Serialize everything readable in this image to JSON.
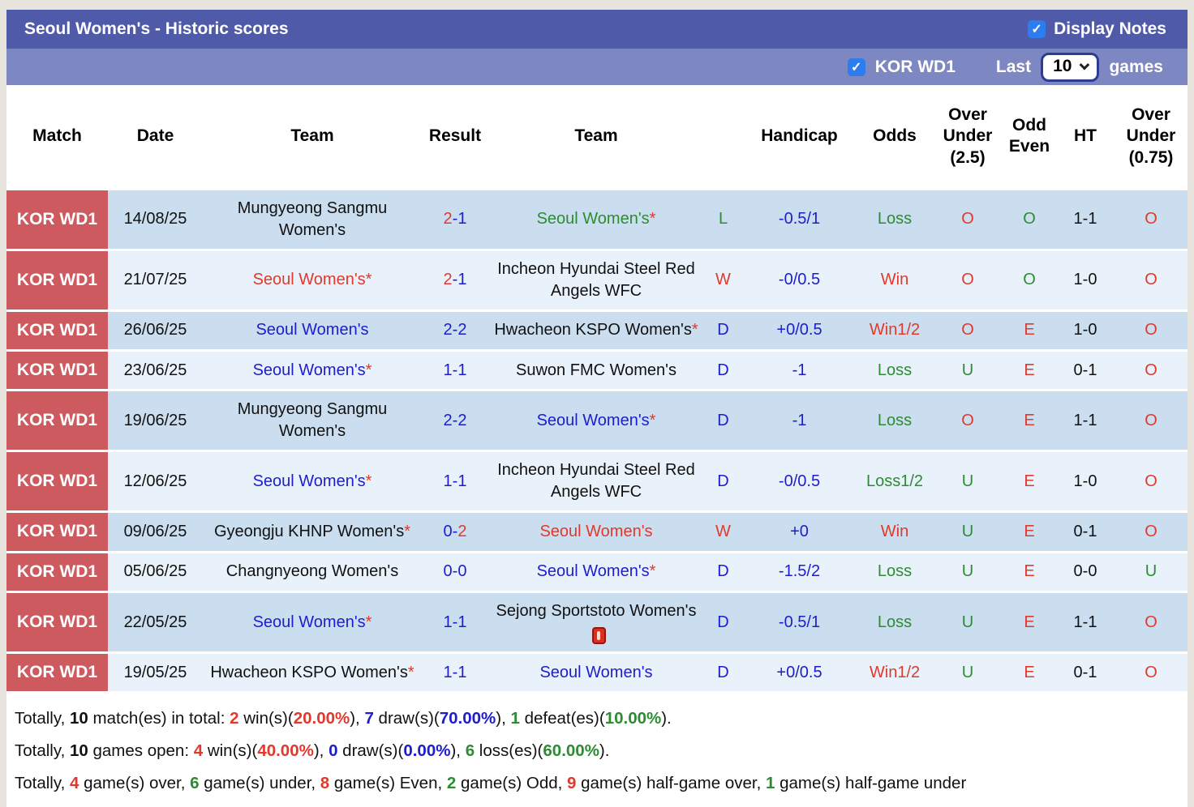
{
  "header": {
    "title": "Seoul Women's - Historic scores",
    "display_notes_label": "Display Notes",
    "league_filter_label": "KOR WD1",
    "last_label": "Last",
    "games_count": "10",
    "games_label": "games"
  },
  "colors": {
    "accent_bar": "#4f5ba8",
    "sub_bar": "#7d87c2",
    "league_badge": "#cd5a5e",
    "row_dark": "#cadeef",
    "row_light": "#e9f2fb",
    "win_red": "#e0392d",
    "draw_blue": "#1d1dcc",
    "loss_green": "#2e8b33"
  },
  "table": {
    "headers": [
      "Match",
      "Date",
      "Team",
      "Result",
      "Team",
      "",
      "Handicap",
      "Odds",
      "Over Under (2.5)",
      "Odd Even",
      "HT",
      "Over Under (0.75)"
    ],
    "rows": [
      {
        "league": "KOR WD1",
        "date": "14/08/25",
        "home": {
          "name": "Mungyeong Sangmu Women's",
          "color": "black",
          "asterisk": false
        },
        "result": {
          "home": "2",
          "home_color": "red",
          "away": "1",
          "away_color": "blue"
        },
        "away": {
          "name": "Seoul Women's",
          "color": "green",
          "asterisk": true
        },
        "wdl": {
          "text": "L",
          "color": "green"
        },
        "handicap": "-0.5/1",
        "odds": {
          "text": "Loss",
          "color": "green"
        },
        "over_under_2_5": {
          "text": "O",
          "color": "red"
        },
        "odd_even": {
          "text": "O",
          "color": "green"
        },
        "ht": "1-1",
        "over_under_0_75": {
          "text": "O",
          "color": "red"
        }
      },
      {
        "league": "KOR WD1",
        "date": "21/07/25",
        "home": {
          "name": "Seoul Women's",
          "color": "red",
          "asterisk": true
        },
        "result": {
          "home": "2",
          "home_color": "red",
          "away": "1",
          "away_color": "blue"
        },
        "away": {
          "name": "Incheon Hyundai Steel Red Angels WFC",
          "color": "black",
          "asterisk": false
        },
        "wdl": {
          "text": "W",
          "color": "red"
        },
        "handicap": "-0/0.5",
        "odds": {
          "text": "Win",
          "color": "red"
        },
        "over_under_2_5": {
          "text": "O",
          "color": "red"
        },
        "odd_even": {
          "text": "O",
          "color": "green"
        },
        "ht": "1-0",
        "over_under_0_75": {
          "text": "O",
          "color": "red"
        }
      },
      {
        "league": "KOR WD1",
        "date": "26/06/25",
        "home": {
          "name": "Seoul Women's",
          "color": "blue",
          "asterisk": false
        },
        "result": {
          "home": "2",
          "home_color": "blue",
          "away": "2",
          "away_color": "blue"
        },
        "away": {
          "name": "Hwacheon KSPO Women's",
          "color": "black",
          "asterisk": true
        },
        "wdl": {
          "text": "D",
          "color": "blue"
        },
        "handicap": "+0/0.5",
        "odds": {
          "text": "Win1/2",
          "color": "red"
        },
        "over_under_2_5": {
          "text": "O",
          "color": "red"
        },
        "odd_even": {
          "text": "E",
          "color": "red"
        },
        "ht": "1-0",
        "over_under_0_75": {
          "text": "O",
          "color": "red"
        }
      },
      {
        "league": "KOR WD1",
        "date": "23/06/25",
        "home": {
          "name": "Seoul Women's",
          "color": "blue",
          "asterisk": true
        },
        "result": {
          "home": "1",
          "home_color": "blue",
          "away": "1",
          "away_color": "blue"
        },
        "away": {
          "name": "Suwon FMC Women's",
          "color": "black",
          "asterisk": false
        },
        "wdl": {
          "text": "D",
          "color": "blue"
        },
        "handicap": "-1",
        "odds": {
          "text": "Loss",
          "color": "green"
        },
        "over_under_2_5": {
          "text": "U",
          "color": "green"
        },
        "odd_even": {
          "text": "E",
          "color": "red"
        },
        "ht": "0-1",
        "over_under_0_75": {
          "text": "O",
          "color": "red"
        }
      },
      {
        "league": "KOR WD1",
        "date": "19/06/25",
        "home": {
          "name": "Mungyeong Sangmu Women's",
          "color": "black",
          "asterisk": false
        },
        "result": {
          "home": "2",
          "home_color": "blue",
          "away": "2",
          "away_color": "blue"
        },
        "away": {
          "name": "Seoul Women's",
          "color": "blue",
          "asterisk": true
        },
        "wdl": {
          "text": "D",
          "color": "blue"
        },
        "handicap": "-1",
        "odds": {
          "text": "Loss",
          "color": "green"
        },
        "over_under_2_5": {
          "text": "O",
          "color": "red"
        },
        "odd_even": {
          "text": "E",
          "color": "red"
        },
        "ht": "1-1",
        "over_under_0_75": {
          "text": "O",
          "color": "red"
        }
      },
      {
        "league": "KOR WD1",
        "date": "12/06/25",
        "home": {
          "name": "Seoul Women's",
          "color": "blue",
          "asterisk": true
        },
        "result": {
          "home": "1",
          "home_color": "blue",
          "away": "1",
          "away_color": "blue"
        },
        "away": {
          "name": "Incheon Hyundai Steel Red Angels WFC",
          "color": "black",
          "asterisk": false
        },
        "wdl": {
          "text": "D",
          "color": "blue"
        },
        "handicap": "-0/0.5",
        "odds": {
          "text": "Loss1/2",
          "color": "green"
        },
        "over_under_2_5": {
          "text": "U",
          "color": "green"
        },
        "odd_even": {
          "text": "E",
          "color": "red"
        },
        "ht": "1-0",
        "over_under_0_75": {
          "text": "O",
          "color": "red"
        }
      },
      {
        "league": "KOR WD1",
        "date": "09/06/25",
        "home": {
          "name": "Gyeongju KHNP Women's",
          "color": "black",
          "asterisk": true
        },
        "result": {
          "home": "0",
          "home_color": "blue",
          "away": "2",
          "away_color": "red"
        },
        "away": {
          "name": "Seoul Women's",
          "color": "red",
          "asterisk": false
        },
        "wdl": {
          "text": "W",
          "color": "red"
        },
        "handicap": "+0",
        "odds": {
          "text": "Win",
          "color": "red"
        },
        "over_under_2_5": {
          "text": "U",
          "color": "green"
        },
        "odd_even": {
          "text": "E",
          "color": "red"
        },
        "ht": "0-1",
        "over_under_0_75": {
          "text": "O",
          "color": "red"
        }
      },
      {
        "league": "KOR WD1",
        "date": "05/06/25",
        "home": {
          "name": "Changnyeong Women's",
          "color": "black",
          "asterisk": false
        },
        "result": {
          "home": "0",
          "home_color": "blue",
          "away": "0",
          "away_color": "blue"
        },
        "away": {
          "name": "Seoul Women's",
          "color": "blue",
          "asterisk": true
        },
        "wdl": {
          "text": "D",
          "color": "blue"
        },
        "handicap": "-1.5/2",
        "odds": {
          "text": "Loss",
          "color": "green"
        },
        "over_under_2_5": {
          "text": "U",
          "color": "green"
        },
        "odd_even": {
          "text": "E",
          "color": "red"
        },
        "ht": "0-0",
        "over_under_0_75": {
          "text": "U",
          "color": "green"
        }
      },
      {
        "league": "KOR WD1",
        "date": "22/05/25",
        "home": {
          "name": "Seoul Women's",
          "color": "blue",
          "asterisk": true
        },
        "result": {
          "home": "1",
          "home_color": "blue",
          "away": "1",
          "away_color": "blue"
        },
        "away": {
          "name": "Sejong Sportstoto Women's",
          "color": "black",
          "asterisk": false,
          "red_card": "1"
        },
        "wdl": {
          "text": "D",
          "color": "blue"
        },
        "handicap": "-0.5/1",
        "odds": {
          "text": "Loss",
          "color": "green"
        },
        "over_under_2_5": {
          "text": "U",
          "color": "green"
        },
        "odd_even": {
          "text": "E",
          "color": "red"
        },
        "ht": "1-1",
        "over_under_0_75": {
          "text": "O",
          "color": "red"
        }
      },
      {
        "league": "KOR WD1",
        "date": "19/05/25",
        "home": {
          "name": "Hwacheon KSPO Women's",
          "color": "black",
          "asterisk": true
        },
        "result": {
          "home": "1",
          "home_color": "blue",
          "away": "1",
          "away_color": "blue"
        },
        "away": {
          "name": "Seoul Women's",
          "color": "blue",
          "asterisk": false
        },
        "wdl": {
          "text": "D",
          "color": "blue"
        },
        "handicap": "+0/0.5",
        "odds": {
          "text": "Win1/2",
          "color": "red"
        },
        "over_under_2_5": {
          "text": "U",
          "color": "green"
        },
        "odd_even": {
          "text": "E",
          "color": "red"
        },
        "ht": "0-1",
        "over_under_0_75": {
          "text": "O",
          "color": "red"
        }
      }
    ]
  },
  "summary": {
    "lines": [
      [
        {
          "text": "Totally, ",
          "color": "black"
        },
        {
          "text": "10",
          "color": "black",
          "bold": true
        },
        {
          "text": " match(es) in total: ",
          "color": "black"
        },
        {
          "text": "2",
          "color": "red",
          "bold": true
        },
        {
          "text": " win(s)(",
          "color": "black"
        },
        {
          "text": "20.00%",
          "color": "red",
          "bold": true
        },
        {
          "text": "), ",
          "color": "black"
        },
        {
          "text": "7",
          "color": "blue",
          "bold": true
        },
        {
          "text": " draw(s)(",
          "color": "black"
        },
        {
          "text": "70.00%",
          "color": "blue",
          "bold": true
        },
        {
          "text": "), ",
          "color": "black"
        },
        {
          "text": "1",
          "color": "green",
          "bold": true
        },
        {
          "text": " defeat(es)(",
          "color": "black"
        },
        {
          "text": "10.00%",
          "color": "green",
          "bold": true
        },
        {
          "text": ").",
          "color": "black"
        }
      ],
      [
        {
          "text": "Totally, ",
          "color": "black"
        },
        {
          "text": "10",
          "color": "black",
          "bold": true
        },
        {
          "text": " games open: ",
          "color": "black"
        },
        {
          "text": "4",
          "color": "red",
          "bold": true
        },
        {
          "text": " win(s)(",
          "color": "black"
        },
        {
          "text": "40.00%",
          "color": "red",
          "bold": true
        },
        {
          "text": "), ",
          "color": "black"
        },
        {
          "text": "0",
          "color": "blue",
          "bold": true
        },
        {
          "text": " draw(s)(",
          "color": "black"
        },
        {
          "text": "0.00%",
          "color": "blue",
          "bold": true
        },
        {
          "text": "), ",
          "color": "black"
        },
        {
          "text": "6",
          "color": "green",
          "bold": true
        },
        {
          "text": " loss(es)(",
          "color": "black"
        },
        {
          "text": "60.00%",
          "color": "green",
          "bold": true
        },
        {
          "text": ").",
          "color": "black"
        }
      ],
      [
        {
          "text": "Totally, ",
          "color": "black"
        },
        {
          "text": "4",
          "color": "red",
          "bold": true
        },
        {
          "text": " game(s) over, ",
          "color": "black"
        },
        {
          "text": "6",
          "color": "green",
          "bold": true
        },
        {
          "text": " game(s) under, ",
          "color": "black"
        },
        {
          "text": "8",
          "color": "red",
          "bold": true
        },
        {
          "text": " game(s) Even, ",
          "color": "black"
        },
        {
          "text": "2",
          "color": "green",
          "bold": true
        },
        {
          "text": " game(s) Odd, ",
          "color": "black"
        },
        {
          "text": "9",
          "color": "red",
          "bold": true
        },
        {
          "text": " game(s) half-game over, ",
          "color": "black"
        },
        {
          "text": "1",
          "color": "green",
          "bold": true
        },
        {
          "text": " game(s) half-game under",
          "color": "black"
        }
      ]
    ]
  }
}
